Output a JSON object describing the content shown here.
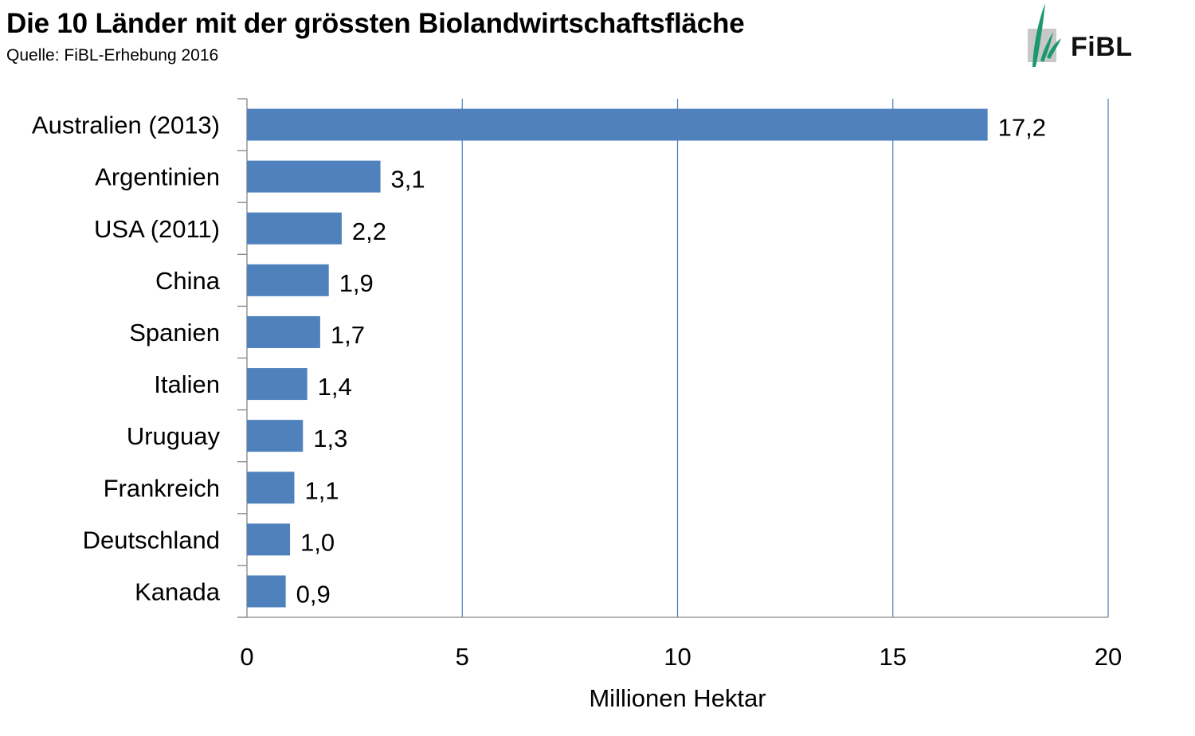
{
  "header": {
    "title": "Die 10 Länder mit der grössten Biolandwirtschaftsfläche",
    "subtitle": "Quelle: FiBL-Erhebung 2016"
  },
  "logo": {
    "text": "FiBL",
    "icon": "fibl-leaf-logo"
  },
  "colors": {
    "bar": "#4f81bd",
    "grid": "#4a7ebb"
  },
  "chart_data": {
    "type": "bar",
    "orientation": "horizontal",
    "categories": [
      "Australien (2013)",
      "Argentinien",
      "USA (2011)",
      "China",
      "Spanien",
      "Italien",
      "Uruguay",
      "Frankreich",
      "Deutschland",
      "Kanada"
    ],
    "values": [
      17.2,
      3.1,
      2.2,
      1.9,
      1.7,
      1.4,
      1.3,
      1.1,
      1.0,
      0.9
    ],
    "value_labels": [
      "17,2",
      "3,1",
      "2,2",
      "1,9",
      "1,7",
      "1,4",
      "1,3",
      "1,1",
      "1,0",
      "0,9"
    ],
    "xlabel": "Millionen Hektar",
    "ylabel": "",
    "xlim": [
      0,
      20
    ],
    "xticks": [
      0,
      5,
      10,
      15,
      20
    ],
    "grid": "vertical",
    "legend": "none"
  }
}
